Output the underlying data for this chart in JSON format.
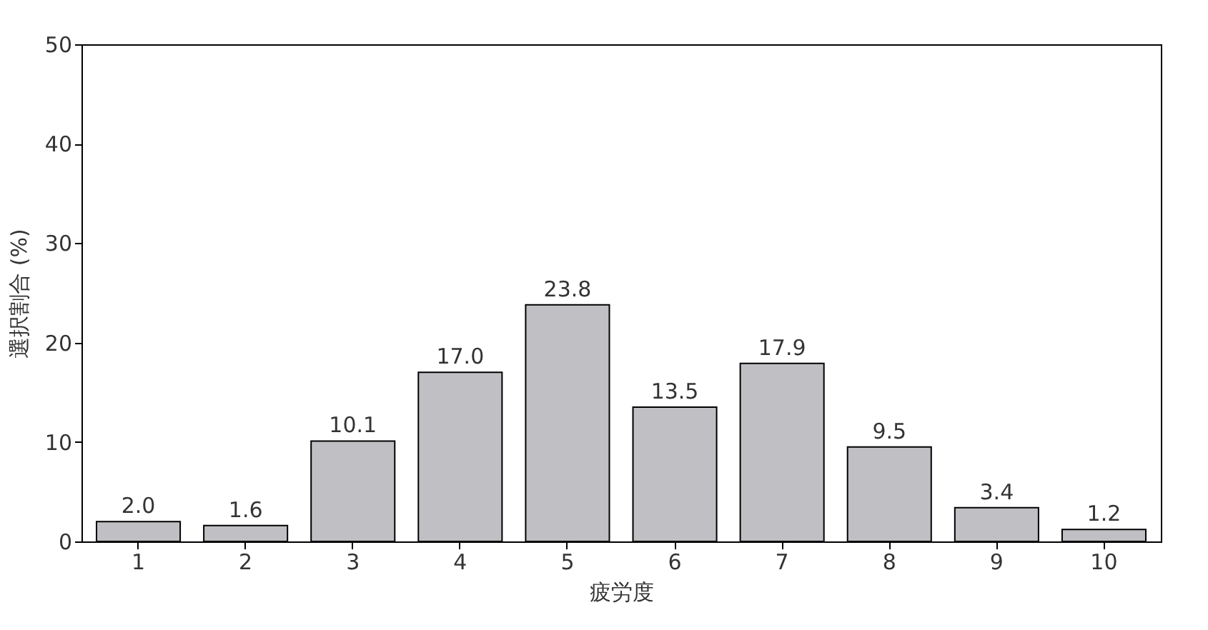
{
  "chart_data": {
    "type": "bar",
    "xlabel": "疲労度",
    "ylabel": "選択割合 (%)",
    "categories": [
      "1",
      "2",
      "3",
      "4",
      "5",
      "6",
      "7",
      "8",
      "9",
      "10"
    ],
    "values": [
      2.0,
      1.6,
      10.1,
      17.0,
      23.8,
      13.5,
      17.9,
      9.5,
      3.4,
      1.2
    ],
    "value_labels": [
      "2.0",
      "1.6",
      "10.1",
      "17.0",
      "23.8",
      "13.5",
      "17.9",
      "9.5",
      "3.4",
      "1.2"
    ],
    "color": "#c0c0c4",
    "ylim": [
      0,
      50
    ],
    "yticks": [
      0,
      10,
      20,
      30,
      40,
      50
    ],
    "grid": false
  }
}
